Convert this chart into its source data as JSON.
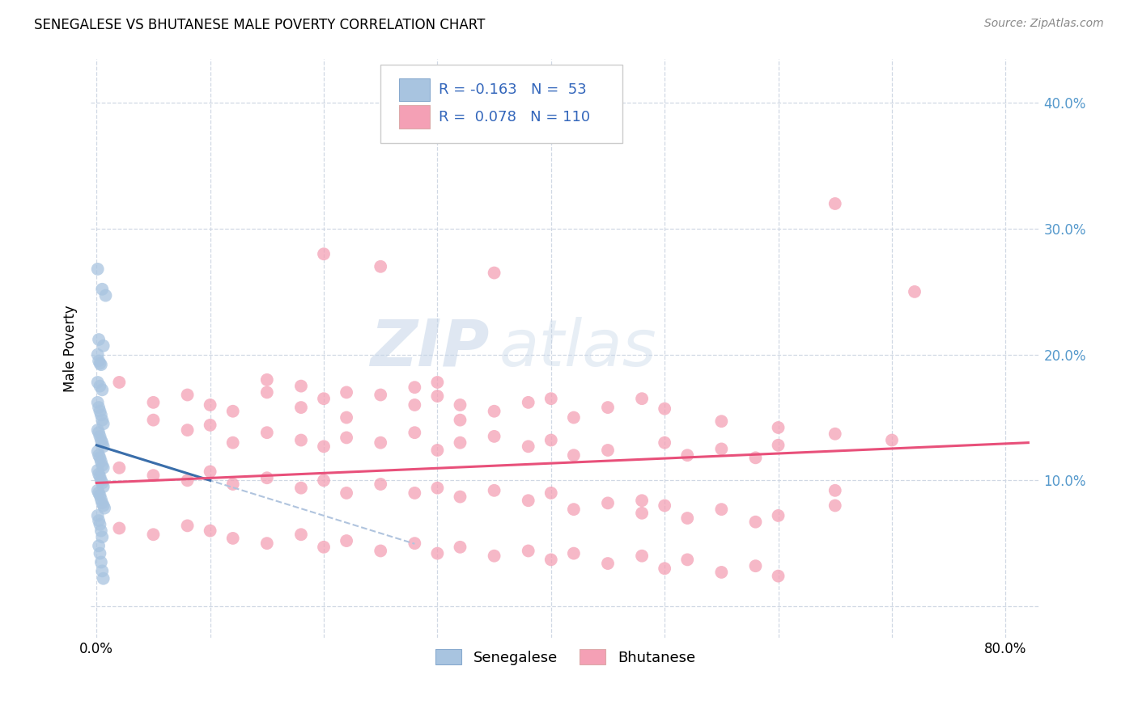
{
  "title": "SENEGALESE VS BHUTANESE MALE POVERTY CORRELATION CHART",
  "source": "Source: ZipAtlas.com",
  "ylabel": "Male Poverty",
  "x_ticks": [
    0.0,
    0.1,
    0.2,
    0.3,
    0.4,
    0.5,
    0.6,
    0.7,
    0.8
  ],
  "y_ticks": [
    0.0,
    0.1,
    0.2,
    0.3,
    0.4
  ],
  "xlim": [
    -0.005,
    0.83
  ],
  "ylim": [
    -0.025,
    0.435
  ],
  "R_senegalese": -0.163,
  "N_senegalese": 53,
  "R_bhutanese": 0.078,
  "N_bhutanese": 110,
  "senegalese_color": "#a8c4e0",
  "bhutanese_color": "#f4a0b5",
  "trend_senegalese_color": "#3a6eaa",
  "trend_bhutanese_color": "#e8507a",
  "trend_dashed_color": "#b0c4de",
  "background_color": "#ffffff",
  "grid_color": "#d0d8e4",
  "watermark_zip": "ZIP",
  "watermark_atlas": "atlas",
  "senegalese_points": [
    [
      0.001,
      0.268
    ],
    [
      0.005,
      0.252
    ],
    [
      0.008,
      0.247
    ],
    [
      0.002,
      0.212
    ],
    [
      0.006,
      0.207
    ],
    [
      0.001,
      0.2
    ],
    [
      0.003,
      0.193
    ],
    [
      0.002,
      0.195
    ],
    [
      0.004,
      0.192
    ],
    [
      0.001,
      0.178
    ],
    [
      0.003,
      0.175
    ],
    [
      0.005,
      0.172
    ],
    [
      0.001,
      0.162
    ],
    [
      0.002,
      0.158
    ],
    [
      0.003,
      0.155
    ],
    [
      0.004,
      0.152
    ],
    [
      0.005,
      0.148
    ],
    [
      0.006,
      0.145
    ],
    [
      0.001,
      0.14
    ],
    [
      0.002,
      0.138
    ],
    [
      0.003,
      0.135
    ],
    [
      0.004,
      0.132
    ],
    [
      0.005,
      0.13
    ],
    [
      0.006,
      0.127
    ],
    [
      0.001,
      0.123
    ],
    [
      0.002,
      0.12
    ],
    [
      0.003,
      0.118
    ],
    [
      0.004,
      0.115
    ],
    [
      0.005,
      0.112
    ],
    [
      0.006,
      0.11
    ],
    [
      0.001,
      0.108
    ],
    [
      0.002,
      0.105
    ],
    [
      0.003,
      0.103
    ],
    [
      0.004,
      0.1
    ],
    [
      0.005,
      0.098
    ],
    [
      0.006,
      0.095
    ],
    [
      0.001,
      0.092
    ],
    [
      0.002,
      0.09
    ],
    [
      0.003,
      0.088
    ],
    [
      0.004,
      0.085
    ],
    [
      0.005,
      0.082
    ],
    [
      0.006,
      0.08
    ],
    [
      0.007,
      0.078
    ],
    [
      0.001,
      0.072
    ],
    [
      0.002,
      0.068
    ],
    [
      0.003,
      0.065
    ],
    [
      0.004,
      0.06
    ],
    [
      0.005,
      0.055
    ],
    [
      0.002,
      0.048
    ],
    [
      0.003,
      0.042
    ],
    [
      0.004,
      0.035
    ],
    [
      0.005,
      0.028
    ],
    [
      0.006,
      0.022
    ]
  ],
  "bhutanese_points": [
    [
      0.02,
      0.178
    ],
    [
      0.05,
      0.162
    ],
    [
      0.08,
      0.168
    ],
    [
      0.1,
      0.16
    ],
    [
      0.12,
      0.155
    ],
    [
      0.15,
      0.17
    ],
    [
      0.18,
      0.158
    ],
    [
      0.2,
      0.165
    ],
    [
      0.22,
      0.15
    ],
    [
      0.25,
      0.168
    ],
    [
      0.28,
      0.16
    ],
    [
      0.3,
      0.178
    ],
    [
      0.32,
      0.148
    ],
    [
      0.35,
      0.155
    ],
    [
      0.38,
      0.162
    ],
    [
      0.4,
      0.165
    ],
    [
      0.42,
      0.15
    ],
    [
      0.45,
      0.158
    ],
    [
      0.05,
      0.148
    ],
    [
      0.08,
      0.14
    ],
    [
      0.1,
      0.144
    ],
    [
      0.12,
      0.13
    ],
    [
      0.15,
      0.138
    ],
    [
      0.18,
      0.132
    ],
    [
      0.2,
      0.127
    ],
    [
      0.22,
      0.134
    ],
    [
      0.25,
      0.13
    ],
    [
      0.28,
      0.138
    ],
    [
      0.3,
      0.124
    ],
    [
      0.32,
      0.13
    ],
    [
      0.35,
      0.135
    ],
    [
      0.38,
      0.127
    ],
    [
      0.4,
      0.132
    ],
    [
      0.42,
      0.12
    ],
    [
      0.45,
      0.124
    ],
    [
      0.5,
      0.13
    ],
    [
      0.52,
      0.12
    ],
    [
      0.55,
      0.125
    ],
    [
      0.58,
      0.118
    ],
    [
      0.6,
      0.128
    ],
    [
      0.02,
      0.11
    ],
    [
      0.05,
      0.104
    ],
    [
      0.08,
      0.1
    ],
    [
      0.1,
      0.107
    ],
    [
      0.12,
      0.097
    ],
    [
      0.15,
      0.102
    ],
    [
      0.18,
      0.094
    ],
    [
      0.2,
      0.1
    ],
    [
      0.22,
      0.09
    ],
    [
      0.25,
      0.097
    ],
    [
      0.28,
      0.09
    ],
    [
      0.3,
      0.094
    ],
    [
      0.32,
      0.087
    ],
    [
      0.35,
      0.092
    ],
    [
      0.38,
      0.084
    ],
    [
      0.4,
      0.09
    ],
    [
      0.42,
      0.077
    ],
    [
      0.45,
      0.082
    ],
    [
      0.48,
      0.074
    ],
    [
      0.5,
      0.08
    ],
    [
      0.52,
      0.07
    ],
    [
      0.55,
      0.077
    ],
    [
      0.58,
      0.067
    ],
    [
      0.6,
      0.072
    ],
    [
      0.65,
      0.092
    ],
    [
      0.02,
      0.062
    ],
    [
      0.05,
      0.057
    ],
    [
      0.08,
      0.064
    ],
    [
      0.1,
      0.06
    ],
    [
      0.12,
      0.054
    ],
    [
      0.15,
      0.05
    ],
    [
      0.18,
      0.057
    ],
    [
      0.2,
      0.047
    ],
    [
      0.22,
      0.052
    ],
    [
      0.25,
      0.044
    ],
    [
      0.28,
      0.05
    ],
    [
      0.3,
      0.042
    ],
    [
      0.32,
      0.047
    ],
    [
      0.35,
      0.04
    ],
    [
      0.38,
      0.044
    ],
    [
      0.4,
      0.037
    ],
    [
      0.42,
      0.042
    ],
    [
      0.45,
      0.034
    ],
    [
      0.48,
      0.04
    ],
    [
      0.5,
      0.03
    ],
    [
      0.52,
      0.037
    ],
    [
      0.55,
      0.027
    ],
    [
      0.58,
      0.032
    ],
    [
      0.6,
      0.024
    ],
    [
      0.2,
      0.28
    ],
    [
      0.25,
      0.27
    ],
    [
      0.35,
      0.265
    ],
    [
      0.65,
      0.32
    ],
    [
      0.72,
      0.25
    ],
    [
      0.15,
      0.18
    ],
    [
      0.18,
      0.175
    ],
    [
      0.22,
      0.17
    ],
    [
      0.28,
      0.174
    ],
    [
      0.3,
      0.167
    ],
    [
      0.32,
      0.16
    ],
    [
      0.48,
      0.165
    ],
    [
      0.5,
      0.157
    ],
    [
      0.55,
      0.147
    ],
    [
      0.6,
      0.142
    ],
    [
      0.65,
      0.137
    ],
    [
      0.7,
      0.132
    ],
    [
      0.48,
      0.084
    ],
    [
      0.65,
      0.08
    ]
  ],
  "trend_sen_x0": 0.0,
  "trend_sen_x1": 0.1,
  "trend_sen_y0": 0.128,
  "trend_sen_y1": 0.1,
  "trend_bhu_x0": 0.0,
  "trend_bhu_x1": 0.82,
  "trend_bhu_y0": 0.098,
  "trend_bhu_y1": 0.13
}
